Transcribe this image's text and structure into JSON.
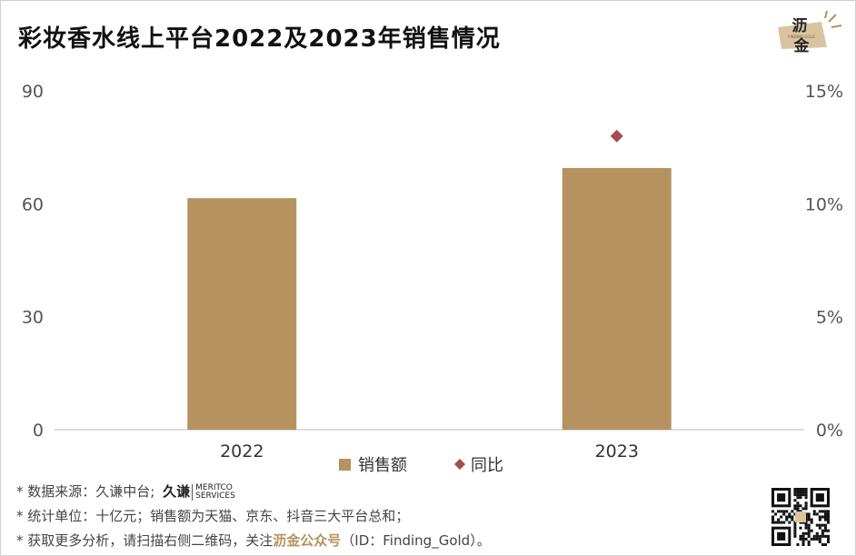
{
  "title": "彩妆香水线上平台2022及2023年销售情况",
  "logo": {
    "cn_top": "沥",
    "cn_bottom": "金",
    "en": "FINDING GOLD"
  },
  "chart_data": {
    "type": "bar",
    "categories": [
      "2022",
      "2023"
    ],
    "series": [
      {
        "name": "销售额",
        "kind": "bar",
        "axis": "left",
        "values": [
          61.5,
          69.5
        ],
        "color": "#b5925f"
      },
      {
        "name": "同比",
        "kind": "scatter",
        "axis": "right",
        "values": [
          null,
          0.13
        ],
        "color": "#a34d4d"
      }
    ],
    "y_left": {
      "min": 0,
      "max": 90,
      "ticks": [
        0,
        30,
        60,
        90
      ],
      "tick_labels": [
        "0",
        "30",
        "60",
        "90"
      ]
    },
    "y_right": {
      "min": 0,
      "max": 0.15,
      "ticks": [
        0,
        0.05,
        0.1,
        0.15
      ],
      "tick_labels": [
        "0%",
        "5%",
        "10%",
        "15%"
      ]
    },
    "grid": false,
    "legend": "bottom-center"
  },
  "footnotes": {
    "line1": "* 数据来源：久谦中台;",
    "meritco_cn": "久谦",
    "meritco_en_1": "MERITCO",
    "meritco_en_2": "SERVICES",
    "line2": "* 统计单位：十亿元；销售额为天猫、京东、抖音三大平台总和；",
    "line3_pre": "* 获取更多分析，请扫描右侧二维码，关注",
    "line3_brand": "沥金公众号",
    "line3_post": "（ID：Finding_Gold）。"
  }
}
